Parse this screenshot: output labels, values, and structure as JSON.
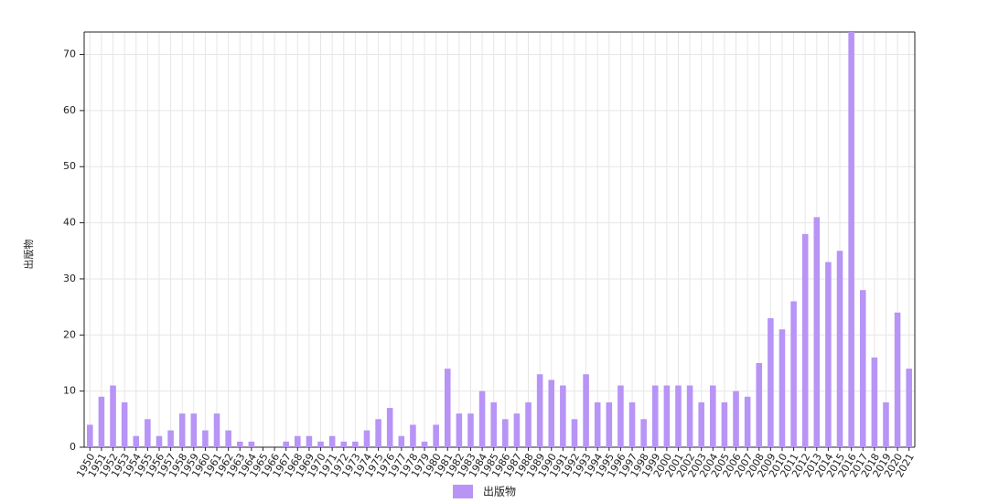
{
  "chart_data": {
    "type": "bar",
    "y_label": "出版物",
    "categories": [
      "1950",
      "1951",
      "1952",
      "1953",
      "1954",
      "1955",
      "1956",
      "1957",
      "1958",
      "1959",
      "1960",
      "1961",
      "1962",
      "1963",
      "1964",
      "1965",
      "1966",
      "1967",
      "1968",
      "1969",
      "1970",
      "1971",
      "1972",
      "1973",
      "1974",
      "1975",
      "1976",
      "1977",
      "1978",
      "1979",
      "1980",
      "1981",
      "1982",
      "1983",
      "1984",
      "1985",
      "1986",
      "1987",
      "1988",
      "1989",
      "1990",
      "1991",
      "1992",
      "1993",
      "1994",
      "1995",
      "1996",
      "1997",
      "1998",
      "1999",
      "2000",
      "2001",
      "2002",
      "2003",
      "2004",
      "2005",
      "2006",
      "2007",
      "2008",
      "2009",
      "2010",
      "2011",
      "2012",
      "2013",
      "2014",
      "2015",
      "2016",
      "2017",
      "2018",
      "2019",
      "2020",
      "2021"
    ],
    "series": [
      {
        "name": "出版物",
        "color": "#b794f6",
        "values": [
          4,
          9,
          11,
          8,
          2,
          5,
          2,
          3,
          6,
          6,
          3,
          6,
          3,
          1,
          1,
          0,
          0,
          1,
          2,
          2,
          1,
          2,
          1,
          1,
          3,
          5,
          7,
          2,
          4,
          1,
          4,
          14,
          6,
          6,
          10,
          8,
          5,
          6,
          8,
          13,
          12,
          11,
          5,
          13,
          8,
          8,
          11,
          8,
          5,
          11,
          11,
          11,
          11,
          8,
          11,
          8,
          10,
          9,
          15,
          23,
          21,
          26,
          38,
          41,
          33,
          35,
          74,
          28,
          16,
          8,
          24,
          14
        ]
      }
    ],
    "ylim": [
      0,
      74
    ],
    "yticks": [
      0,
      10,
      20,
      30,
      40,
      50,
      60,
      70
    ],
    "grid": true,
    "legend": "bottom"
  }
}
